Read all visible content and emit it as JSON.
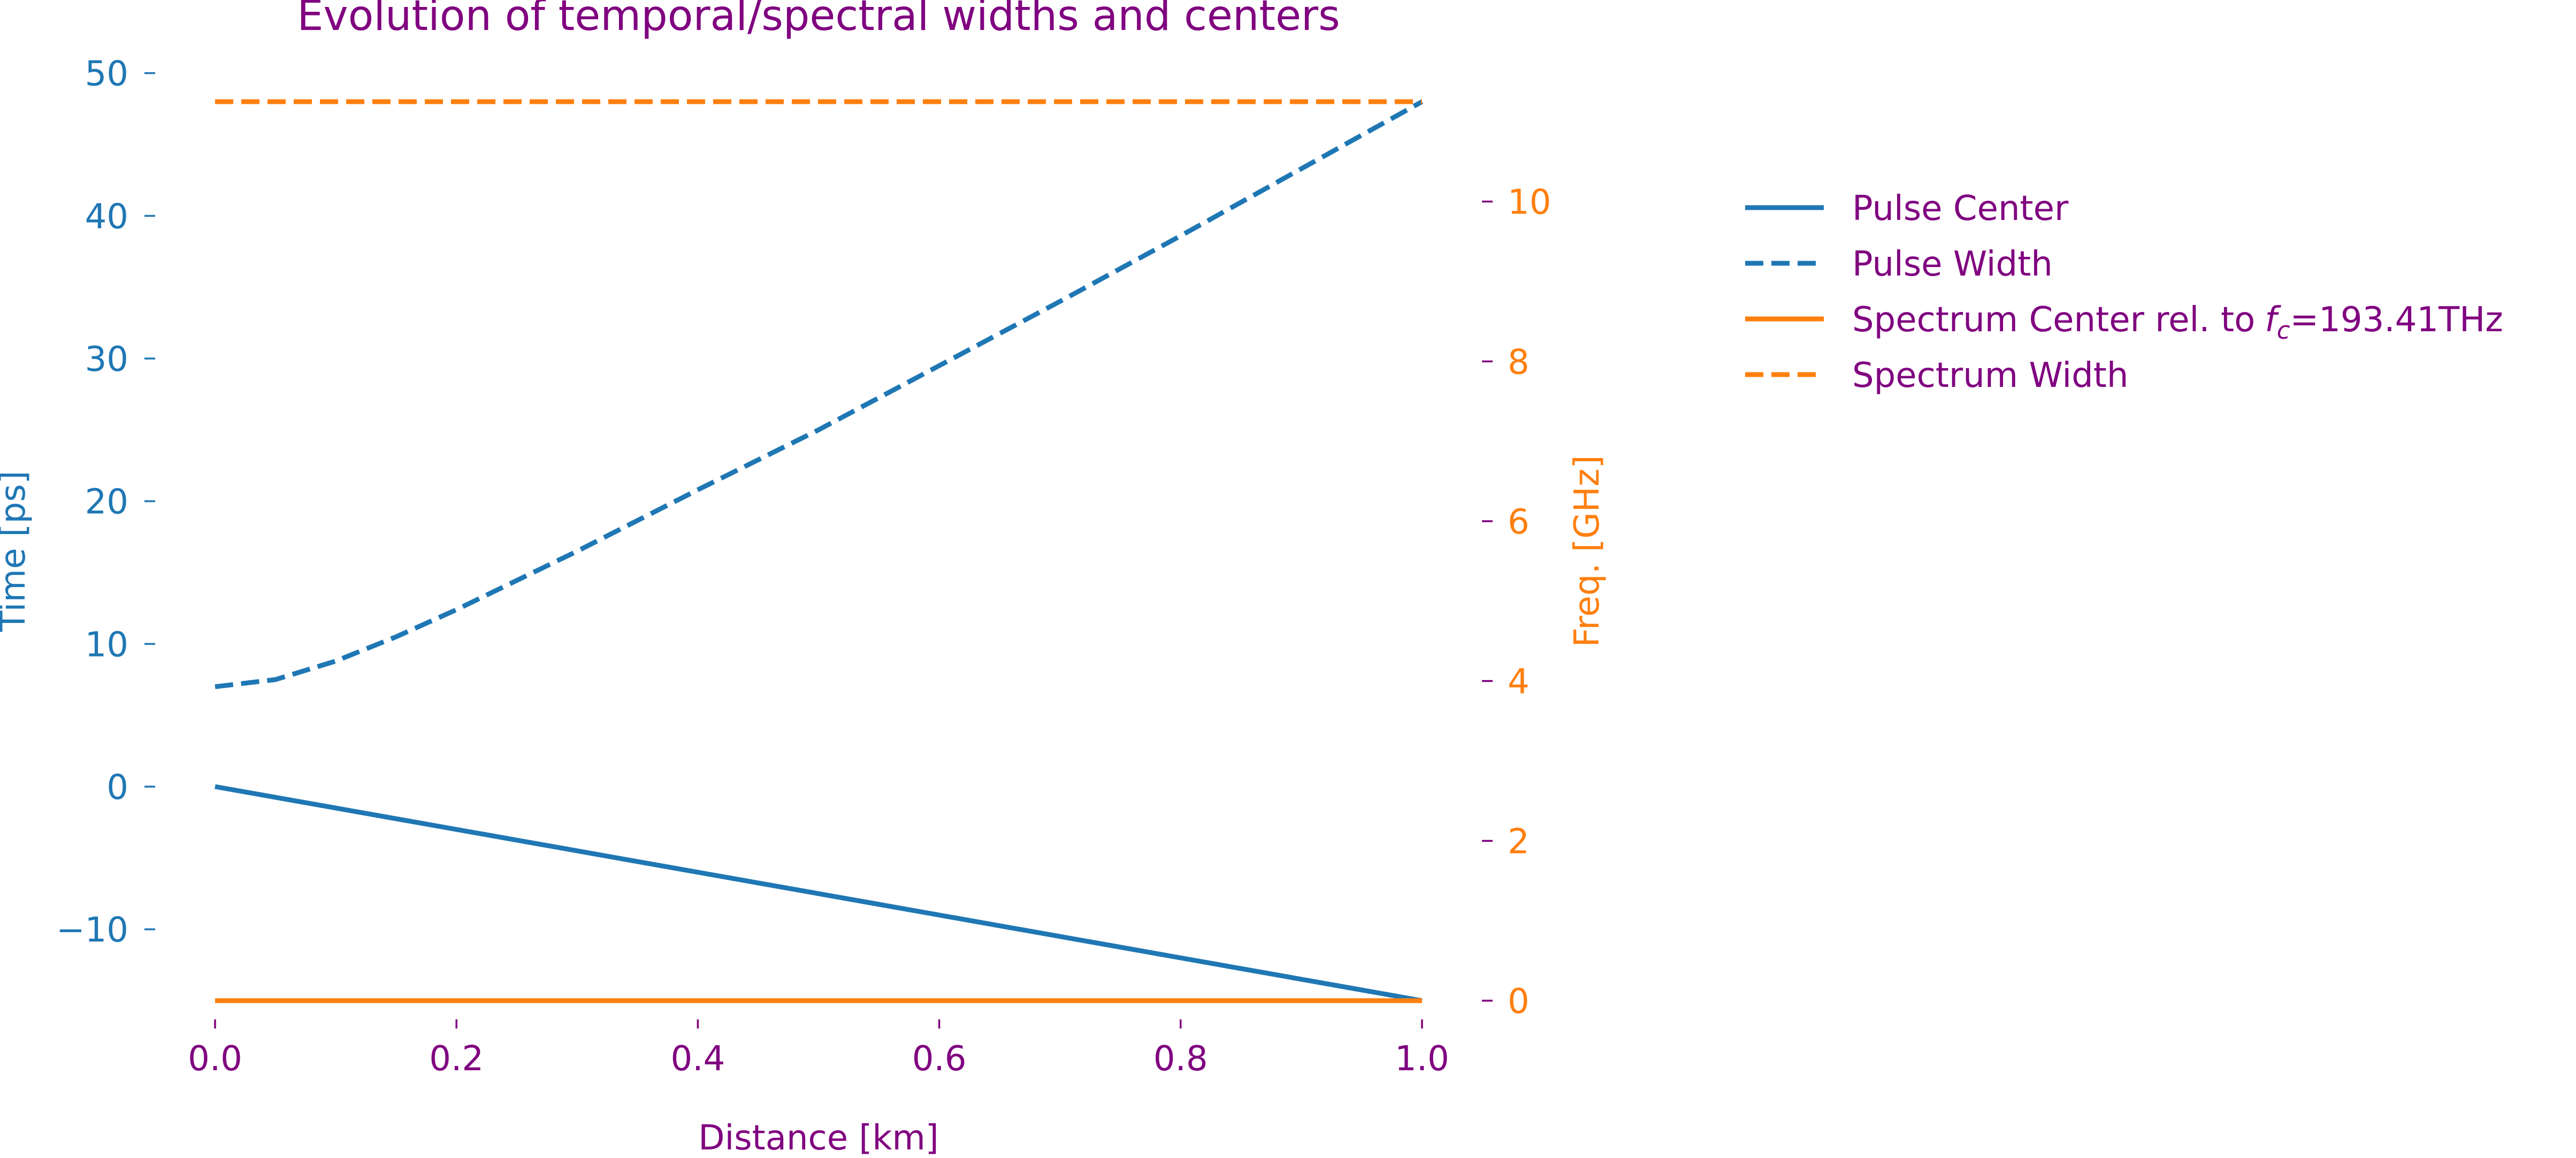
{
  "chart_data": {
    "type": "line",
    "title": "Evolution of temporal/spectral widths and centers",
    "xlabel": "Distance [km]",
    "ylabel_left": "Time [ps]",
    "ylabel_right": "Freq. [GHz]",
    "xlim": [
      0.0,
      1.0
    ],
    "ylim_left": [
      -15.0,
      48.0
    ],
    "ylim_right": [
      0.0,
      11.25
    ],
    "xticks": [
      "0.0",
      "0.2",
      "0.4",
      "0.6",
      "0.8",
      "1.0"
    ],
    "yticks_left": [
      "−10",
      "0",
      "10",
      "20",
      "30",
      "40",
      "50"
    ],
    "yticks_right": [
      "0",
      "2",
      "4",
      "6",
      "8",
      "10"
    ],
    "grid": false,
    "legend_placement": "outside right",
    "colors": {
      "time": "#1f77b4",
      "freq": "#ff7f0e",
      "text": "#800080"
    },
    "series": [
      {
        "name": "Pulse Center",
        "axis": "left",
        "style": "solid",
        "color": "#1f77b4",
        "x": [
          0.0,
          0.2,
          0.4,
          0.6,
          0.8,
          1.0
        ],
        "y": [
          0.0,
          -3.0,
          -6.0,
          -9.0,
          -12.0,
          -15.0
        ]
      },
      {
        "name": "Pulse Width",
        "axis": "left",
        "style": "dashed",
        "color": "#1f77b4",
        "x": [
          0.0,
          0.05,
          0.1,
          0.15,
          0.2,
          0.3,
          0.4,
          0.5,
          0.6,
          0.7,
          0.8,
          0.9,
          1.0
        ],
        "y": [
          7.0,
          7.5,
          8.8,
          10.5,
          12.4,
          16.5,
          20.8,
          25.0,
          29.5,
          34.0,
          38.6,
          43.3,
          48.0
        ]
      },
      {
        "name": "Spectrum Center rel. to",
        "legend_math": {
          "symbol": "f",
          "subscript": "c",
          "value": "=193.41THz"
        },
        "axis": "right",
        "style": "solid",
        "color": "#ff7f0e",
        "x": [
          0.0,
          1.0
        ],
        "y": [
          0.0,
          0.0
        ]
      },
      {
        "name": "Spectrum Width",
        "axis": "right",
        "style": "dashed",
        "color": "#ff7f0e",
        "x": [
          0.0,
          1.0
        ],
        "y": [
          11.25,
          11.25
        ]
      }
    ]
  }
}
